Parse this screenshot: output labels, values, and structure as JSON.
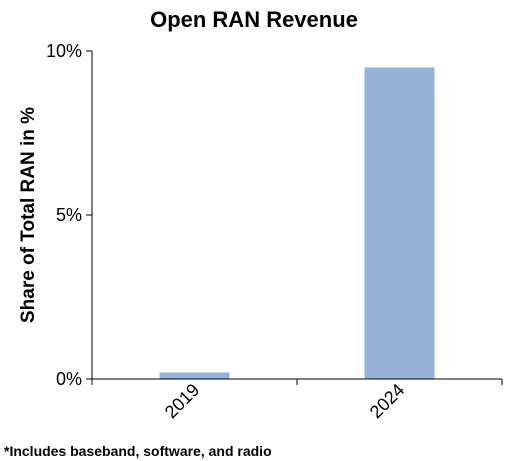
{
  "chart_data": {
    "type": "bar",
    "title": "Open RAN Revenue",
    "xlabel": "",
    "ylabel": "Share of Total RAN in %",
    "categories": [
      "2019",
      "2024"
    ],
    "series": [
      {
        "values": [
          0.2,
          9.5
        ]
      }
    ],
    "ylim": [
      0,
      10
    ],
    "yticks": [
      0,
      5,
      10
    ],
    "ytick_labels": [
      "0%",
      "5%",
      "10%"
    ],
    "bar_color": "#95b3d7",
    "grid": false,
    "legend": "none"
  },
  "footnote": "*Includes baseband, software, and radio"
}
